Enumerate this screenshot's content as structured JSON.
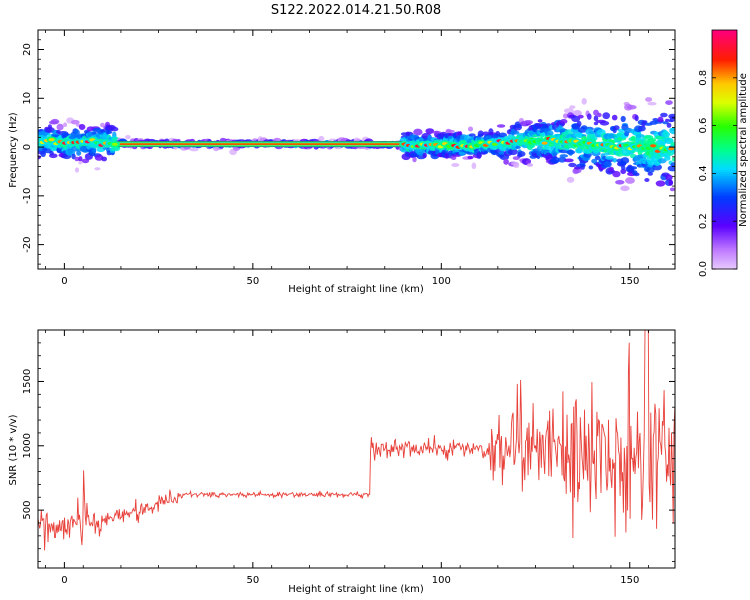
{
  "chart_data": [
    {
      "type": "heatmap",
      "title": "S122.2022.014.21.50.R08",
      "xlabel": "Height of straight line (km)",
      "ylabel": "Frequency (Hz)",
      "xlim": [
        -7,
        162
      ],
      "ylim": [
        -25,
        24
      ],
      "xticks": [
        0,
        50,
        100,
        150
      ],
      "yticks": [
        -20,
        -10,
        0,
        10,
        20
      ],
      "colorbar": {
        "label": "Normalized spectral amplitude",
        "range": [
          0,
          1
        ],
        "ticks": [
          "0.0",
          "0.2",
          "0.4",
          "0.6",
          "0.8"
        ],
        "colormap": "gist_rainbow"
      },
      "ridge": [
        {
          "x": -5,
          "freq": 1.2
        },
        {
          "x": 0,
          "freq": 0.8
        },
        {
          "x": 10,
          "freq": 1.0
        },
        {
          "x": 20,
          "freq": 0.6
        },
        {
          "x": 50,
          "freq": 0.6
        },
        {
          "x": 80,
          "freq": 0.6
        },
        {
          "x": 95,
          "freq": 0.3
        },
        {
          "x": 110,
          "freq": 0.5
        },
        {
          "x": 120,
          "freq": 1.2
        },
        {
          "x": 130,
          "freq": 1.3
        },
        {
          "x": 140,
          "freq": 0.6
        },
        {
          "x": 150,
          "freq": 0.2
        },
        {
          "x": 162,
          "freq": -0.5
        }
      ],
      "stable_band": {
        "x_start": 14,
        "x_end": 90,
        "freq": 0.6
      }
    },
    {
      "type": "line",
      "xlabel": "Height of straight line (km)",
      "ylabel": "SNR (10 * v/v)",
      "xlim": [
        -7,
        162
      ],
      "ylim": [
        50,
        1900
      ],
      "xticks": [
        0,
        50,
        100,
        150
      ],
      "yticks": [
        500,
        1000,
        1500
      ],
      "line_color": "#e8413a",
      "segments": [
        {
          "x_start": -7,
          "x_end": 10,
          "mean": 380,
          "noise": 100
        },
        {
          "x_start": 10,
          "x_end": 30,
          "mean_start": 420,
          "mean_end": 580,
          "noise": 60
        },
        {
          "x_start": 30,
          "x_end": 81,
          "mean": 620,
          "noise": 18
        },
        {
          "x_start": 81,
          "x_end": 112,
          "mean": 980,
          "noise": 70
        },
        {
          "x_start": 112,
          "x_end": 132,
          "mean": 1000,
          "noise": 250
        },
        {
          "x_start": 132,
          "x_end": 162,
          "mean": 950,
          "noise": 500
        }
      ],
      "peak_max": 1900
    }
  ]
}
